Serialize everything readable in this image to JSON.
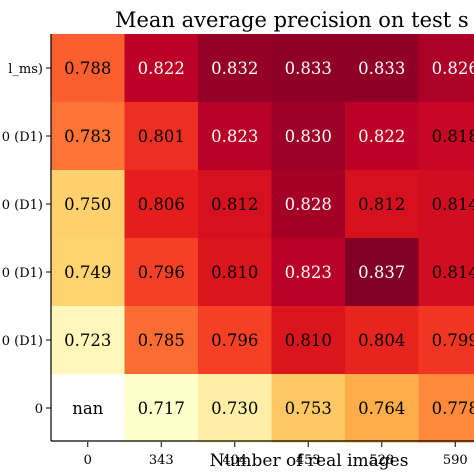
{
  "chart_data": {
    "type": "heatmap",
    "title": "Mean average precision on test s",
    "xlabel": "Number of real images",
    "ylabel": "",
    "x_categories": [
      "0",
      "343",
      "404",
      "453",
      "528",
      "590"
    ],
    "y_categories": [
      "l_ms)",
      "0 (D1)",
      "0 (D1)",
      "0 (D1)",
      "0 (D1)",
      "0"
    ],
    "values": [
      [
        0.788,
        0.822,
        0.832,
        0.833,
        0.833,
        0.826
      ],
      [
        0.783,
        0.801,
        0.823,
        0.83,
        0.822,
        0.818
      ],
      [
        0.75,
        0.806,
        0.812,
        0.828,
        0.812,
        0.814
      ],
      [
        0.749,
        0.796,
        0.81,
        0.823,
        0.837,
        0.814
      ],
      [
        0.723,
        0.785,
        0.796,
        0.81,
        0.804,
        0.799
      ],
      [
        null,
        0.717,
        0.73,
        0.753,
        0.764,
        0.778
      ]
    ],
    "cell_text": [
      [
        "0.788",
        "0.822",
        "0.832",
        "0.833",
        "0.833",
        "0.826"
      ],
      [
        "0.783",
        "0.801",
        "0.823",
        "0.830",
        "0.822",
        "0.818"
      ],
      [
        "0.750",
        "0.806",
        "0.812",
        "0.828",
        "0.812",
        "0.814"
      ],
      [
        "0.749",
        "0.796",
        "0.810",
        "0.823",
        "0.837",
        "0.814"
      ],
      [
        "0.723",
        "0.785",
        "0.796",
        "0.810",
        "0.804",
        "0.799"
      ],
      [
        "nan",
        "0.717",
        "0.730",
        "0.753",
        "0.764",
        "0.778"
      ]
    ],
    "colormap": "YlOrRd",
    "value_range": [
      0.717,
      0.837
    ],
    "nan_color": "#ffffff"
  }
}
